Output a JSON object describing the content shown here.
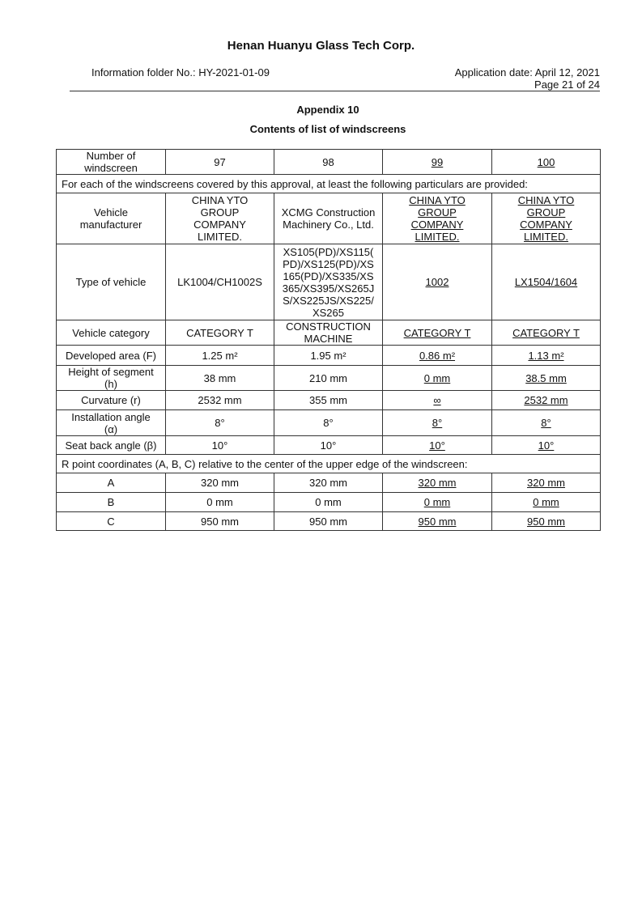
{
  "header": {
    "company": "Henan Huanyu Glass Tech Corp.",
    "folder": "Information folder No.: HY-2021-01-09",
    "application_date": "Application date: April 12, 2021",
    "page": "Page 21 of 24"
  },
  "appendix": {
    "title": "Appendix 10",
    "subtitle": "Contents of list of windscreens"
  },
  "table": {
    "number_row": {
      "label": "Number of\nwindscreen",
      "values": [
        "97",
        "98",
        "99",
        "100"
      ]
    },
    "particulars_note": "For each of the windscreens covered by this approval, at least the following particulars are provided:",
    "rows": [
      {
        "label": "Vehicle\nmanufacturer",
        "values": [
          "CHINA YTO\nGROUP\nCOMPANY\nLIMITED.",
          "XCMG Construction\nMachinery Co., Ltd.",
          "CHINA YTO\nGROUP\nCOMPANY\nLIMITED.",
          "CHINA YTO\nGROUP\nCOMPANY\nLIMITED."
        ]
      },
      {
        "label": "Type of vehicle",
        "values": [
          "LK1004/CH1002S",
          "XS105(PD)/XS115(\nPD)/XS125(PD)/XS\n165(PD)/XS335/XS\n365/XS395/XS265J\nS/XS225JS/XS225/\nXS265",
          "1002",
          "LX1504/1604"
        ]
      },
      {
        "label": "Vehicle category",
        "values": [
          "CATEGORY T",
          "CONSTRUCTION\nMACHINE",
          "CATEGORY T",
          "CATEGORY T"
        ]
      },
      {
        "label": "Developed area (F)",
        "values": [
          "1.25 m²",
          "1.95 m²",
          "0.86 m²",
          "1.13 m²"
        ]
      },
      {
        "label": "Height of segment\n(h)",
        "values": [
          "38 mm",
          "210 mm",
          "0 mm",
          "38.5 mm"
        ]
      },
      {
        "label": "Curvature (r)",
        "values": [
          "2532 mm",
          "355 mm",
          "∞",
          "2532 mm"
        ]
      },
      {
        "label": "Installation angle\n(α)",
        "values": [
          "8°",
          "8°",
          "8°",
          "8°"
        ]
      },
      {
        "label": "Seat back angle (β)",
        "values": [
          "10°",
          "10°",
          "10°",
          "10°"
        ]
      }
    ],
    "r_point_note": "R point coordinates (A, B, C) relative to the center of the upper edge of the windscreen:",
    "r_rows": [
      {
        "label": "A",
        "values": [
          "320 mm",
          "320 mm",
          "320 mm",
          "320 mm"
        ]
      },
      {
        "label": "B",
        "values": [
          "0 mm",
          "0 mm",
          "0 mm",
          "0 mm"
        ]
      },
      {
        "label": "C",
        "values": [
          "950 mm",
          "950 mm",
          "950 mm",
          "950 mm"
        ]
      }
    ]
  }
}
